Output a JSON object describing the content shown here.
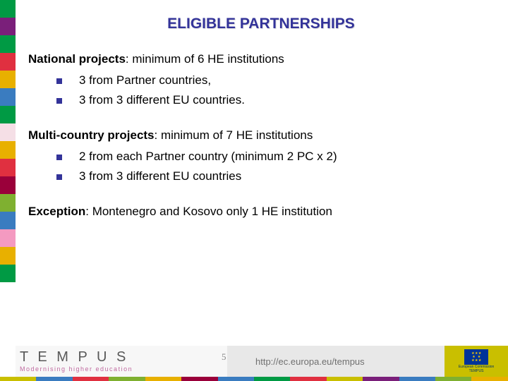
{
  "title": {
    "text": "ELIGIBLE PARTNERSHIPS",
    "color": "#333399"
  },
  "sections": [
    {
      "lead": "National projects",
      "rest": ": minimum of 6 HE institutions",
      "bullets": [
        "3 from Partner countries,",
        "3 from 3 different EU countries."
      ]
    },
    {
      "lead": "Multi-country projects",
      "rest": ": minimum of 7 HE institutions",
      "bullets": [
        "2 from each Partner country (minimum 2 PC x 2)",
        "3 from 3 different EU countries"
      ]
    },
    {
      "lead": "Exception",
      "rest": ": Montenegro and Kosovo only 1 HE institution",
      "bullets": []
    }
  ],
  "bullet_color": "#333399",
  "sidebar_colors": [
    "#009a44",
    "#7a1f7a",
    "#009a44",
    "#e03040",
    "#e8b000",
    "#3a7cc0",
    "#009a44",
    "#f5dfe6",
    "#e8b000",
    "#e03040",
    "#9a003a",
    "#7fb030",
    "#3a7cc0",
    "#f49ac1",
    "#e8b000",
    "#009a44"
  ],
  "footer_colors": [
    "#c9bf00",
    "#3a7cc0",
    "#e03040",
    "#7fb030",
    "#e8b000",
    "#9a003a",
    "#3a7cc0",
    "#009a44",
    "#e03040",
    "#c9bf00",
    "#7a1f7a",
    "#3a7cc0",
    "#7fb030",
    "#e8b000"
  ],
  "footer": {
    "brand": "T E M P U S",
    "tagline": "Modernising higher education",
    "tagline_color": "#c06aa0",
    "url": "http://ec.europa.eu/tempus",
    "slide_number": "5",
    "eu_label_line1": "European Commission",
    "eu_label_line2": "TEMPUS"
  }
}
